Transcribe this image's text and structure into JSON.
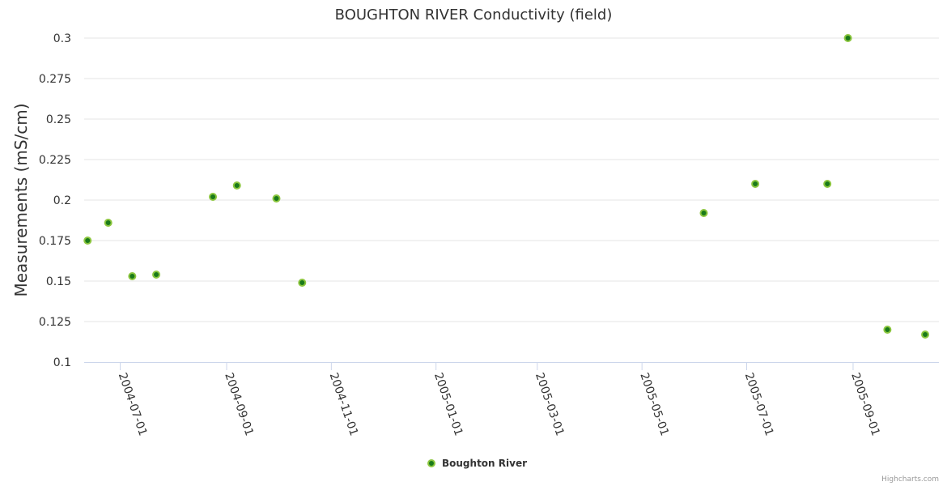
{
  "chart_data": {
    "type": "scatter",
    "title": "BOUGHTON RIVER Conductivity (field)",
    "xlabel": "",
    "ylabel": "Measurements (mS/cm)",
    "ylim": [
      0.1,
      0.3
    ],
    "yticks": [
      "0.1",
      "0.125",
      "0.15",
      "0.175",
      "0.2",
      "0.225",
      "0.25",
      "0.275",
      "0.3"
    ],
    "xlim": [
      "2004-06-10",
      "2005-10-21"
    ],
    "xticks": [
      "2004-07-01",
      "2004-09-01",
      "2004-11-01",
      "2005-01-01",
      "2005-03-01",
      "2005-05-01",
      "2005-07-01",
      "2005-09-01"
    ],
    "grid": true,
    "legend_position": "bottom-center",
    "series": [
      {
        "name": "Boughton River",
        "color": "#8cc63f",
        "points": [
          {
            "x": "2004-06-12",
            "y": 0.175
          },
          {
            "x": "2004-06-24",
            "y": 0.186
          },
          {
            "x": "2004-07-08",
            "y": 0.153
          },
          {
            "x": "2004-07-22",
            "y": 0.154
          },
          {
            "x": "2004-08-24",
            "y": 0.202
          },
          {
            "x": "2004-09-07",
            "y": 0.209
          },
          {
            "x": "2004-09-30",
            "y": 0.201
          },
          {
            "x": "2004-10-15",
            "y": 0.149
          },
          {
            "x": "2005-06-06",
            "y": 0.192
          },
          {
            "x": "2005-07-06",
            "y": 0.21
          },
          {
            "x": "2005-08-17",
            "y": 0.21
          },
          {
            "x": "2005-08-29",
            "y": 0.3
          },
          {
            "x": "2005-09-21",
            "y": 0.12
          },
          {
            "x": "2005-10-13",
            "y": 0.117
          }
        ]
      }
    ]
  },
  "credits": "Highcharts.com"
}
